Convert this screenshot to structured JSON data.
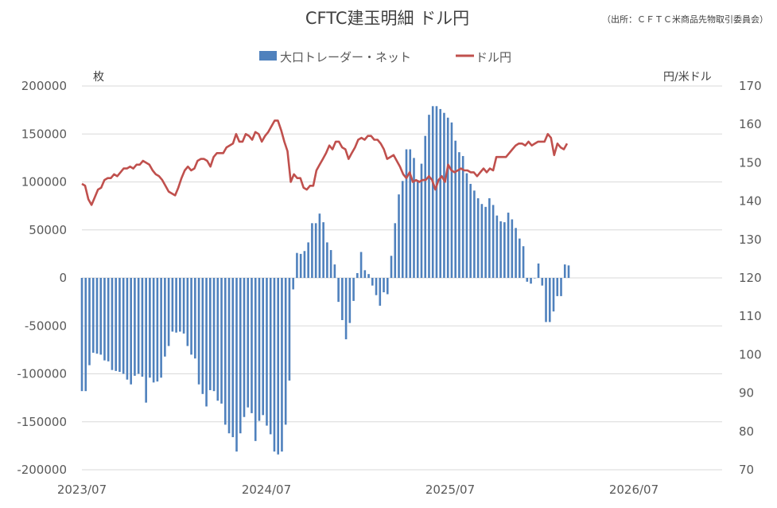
{
  "chart_data": {
    "type": "bar+line",
    "title": "CFTC建玉明細 ドル円",
    "source": "（出所：ＣＦＴＣ米商品先物取引委員会）",
    "left_unit": "枚",
    "right_unit": "円/米ドル",
    "x_tick_labels": [
      "2023/07",
      "2024/07",
      "2025/07",
      "2026/07"
    ],
    "y_left": {
      "min": -200000,
      "max": 200000,
      "step": 50000,
      "tick_labels": [
        "-200000",
        "-150000",
        "-100000",
        "-50000",
        "0",
        "50000",
        "100000",
        "150000",
        "200000"
      ]
    },
    "y_right": {
      "min": 70,
      "max": 170,
      "step": 10,
      "tick_labels": [
        "70",
        "80",
        "90",
        "100",
        "110",
        "120",
        "130",
        "140",
        "150",
        "160",
        "170"
      ]
    },
    "grid": "horizontal",
    "legend_position": "top",
    "colors": {
      "bar": "#4f81bd",
      "line": "#c0504d",
      "grid": "#d9d9d9"
    },
    "x_unit": "week",
    "start_date": "2023-07-04",
    "series": [
      {
        "name": "大口トレーダー・ネット",
        "type": "bar",
        "axis": "left",
        "values": [
          -118000,
          -118000,
          -91000,
          -78000,
          -79000,
          -80000,
          -86000,
          -87000,
          -96000,
          -97000,
          -98000,
          -100000,
          -106000,
          -111000,
          -102000,
          -100000,
          -103000,
          -130000,
          -104000,
          -109000,
          -108000,
          -104000,
          -82000,
          -71000,
          -56000,
          -57000,
          -56000,
          -58000,
          -71000,
          -80000,
          -84000,
          -111000,
          -121000,
          -134000,
          -117000,
          -118000,
          -128000,
          -131000,
          -153000,
          -162000,
          -166000,
          -181000,
          -162000,
          -145000,
          -135000,
          -141000,
          -170000,
          -149000,
          -143000,
          -154000,
          -163000,
          -181000,
          -184000,
          -181000,
          -153000,
          -107000,
          -12000,
          26000,
          25000,
          28000,
          37000,
          57000,
          57000,
          67000,
          58000,
          37000,
          29000,
          14000,
          -25000,
          -44000,
          -64000,
          -47000,
          -24000,
          5000,
          27000,
          8000,
          4000,
          -8000,
          -18000,
          -29000,
          -15000,
          -17000,
          23000,
          57000,
          87000,
          101000,
          134000,
          134000,
          125000,
          102000,
          119000,
          148000,
          170000,
          179000,
          179000,
          176000,
          172000,
          167000,
          162000,
          143000,
          131000,
          127000,
          109000,
          98000,
          91000,
          83000,
          77000,
          74000,
          83000,
          76000,
          65000,
          59000,
          58000,
          68000,
          61000,
          52000,
          41000,
          33000,
          -4000,
          -6000,
          0,
          15000,
          -8000,
          -46000,
          -46000,
          -35000,
          -19000,
          -19000,
          14000,
          13000
        ],
        "values_start_index": 0
      },
      {
        "name": "ドル円",
        "type": "line",
        "axis": "right",
        "values": [
          144.5,
          144.0,
          140.5,
          139.0,
          141.0,
          143.0,
          143.5,
          145.5,
          146.0,
          146.0,
          147.0,
          146.5,
          147.5,
          148.5,
          148.5,
          149.0,
          148.5,
          149.5,
          149.5,
          150.5,
          150.0,
          149.5,
          148.0,
          147.0,
          146.5,
          145.5,
          144.0,
          142.5,
          142.0,
          141.5,
          143.5,
          146.0,
          148.0,
          149.0,
          148.0,
          148.5,
          150.5,
          151.0,
          151.0,
          150.5,
          149.0,
          151.5,
          152.5,
          152.5,
          152.5,
          154.0,
          154.5,
          155.0,
          157.5,
          155.5,
          155.5,
          157.5,
          157.0,
          156.0,
          158.0,
          157.5,
          155.5,
          157.0,
          158.0,
          159.5,
          161.0,
          161.0,
          158.5,
          155.5,
          153.0,
          145.0,
          147.0,
          146.0,
          146.0,
          143.5,
          143.0,
          144.0,
          144.0,
          148.0,
          149.5,
          151.0,
          152.5,
          154.5,
          153.5,
          155.5,
          155.5,
          154.0,
          153.5,
          151.0,
          152.5,
          154.0,
          156.0,
          156.5,
          156.0,
          157.0,
          157.0,
          156.0,
          156.0,
          155.0,
          153.5,
          151.0,
          151.5,
          152.0,
          150.5,
          149.0,
          147.0,
          146.0,
          147.5,
          145.0,
          145.5,
          145.0,
          145.5,
          145.5,
          146.5,
          145.5,
          143.0,
          145.5,
          146.5,
          145.0,
          149.5,
          148.0,
          147.5,
          148.0,
          148.5,
          148.0,
          148.0,
          147.5,
          147.5,
          146.5,
          147.5,
          148.5,
          147.5,
          148.5,
          148.0,
          151.5,
          151.5,
          151.5,
          151.5,
          152.5,
          153.5,
          154.5,
          155.0,
          155.0,
          154.5,
          155.5,
          154.5,
          155.0,
          155.5,
          155.5,
          155.5,
          157.5,
          156.5,
          152.0,
          155.0,
          154.0,
          153.5,
          155.0
        ],
        "values_start_index": 0
      }
    ]
  }
}
